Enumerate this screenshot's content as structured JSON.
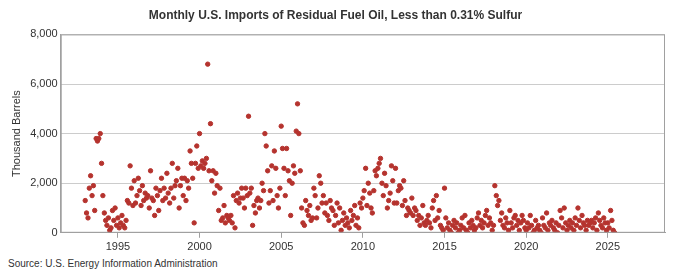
{
  "chart_data": {
    "type": "scatter",
    "title": "Monthly U.S. Imports of Residual Fuel Oil, Less than 0.31% Sulfur",
    "y_label": "Thousand Barrels",
    "source": "Source: U.S. Energy Information Administration",
    "color": "#b5332e",
    "marker": "circle",
    "grid": true,
    "xlim": [
      1991.5,
      2028.5
    ],
    "xticks": [
      1995,
      2000,
      2005,
      2010,
      2015,
      2020,
      2025
    ],
    "ylim": [
      0,
      8000
    ],
    "yticks": [
      0,
      {
        "value": 2000,
        "label": "2,000"
      },
      {
        "value": 4000,
        "label": "4,000"
      },
      {
        "value": 6000,
        "label": "6,000"
      },
      {
        "value": 8000,
        "label": "8,000"
      }
    ],
    "x": [
      1993,
      1993.08,
      1993.17,
      1993.25,
      1993.33,
      1993.42,
      1993.5,
      1993.58,
      1993.67,
      1993.75,
      1993.83,
      1993.92,
      1994,
      1994.08,
      1994.17,
      1994.25,
      1994.33,
      1994.42,
      1994.5,
      1994.58,
      1994.67,
      1994.75,
      1994.83,
      1994.92,
      1995,
      1995.08,
      1995.17,
      1995.25,
      1995.33,
      1995.42,
      1995.5,
      1995.58,
      1995.67,
      1995.75,
      1995.83,
      1995.92,
      1996,
      1996.08,
      1996.17,
      1996.25,
      1996.33,
      1996.42,
      1996.5,
      1996.58,
      1996.67,
      1996.75,
      1996.83,
      1996.92,
      1997,
      1997.08,
      1997.17,
      1997.25,
      1997.33,
      1997.42,
      1997.5,
      1997.58,
      1997.67,
      1997.75,
      1997.83,
      1997.92,
      1998,
      1998.08,
      1998.17,
      1998.25,
      1998.33,
      1998.42,
      1998.5,
      1998.58,
      1998.67,
      1998.75,
      1998.83,
      1998.92,
      1999,
      1999.08,
      1999.17,
      1999.25,
      1999.33,
      1999.42,
      1999.5,
      1999.58,
      1999.67,
      1999.75,
      1999.83,
      1999.92,
      2000,
      2000.08,
      2000.17,
      2000.25,
      2000.33,
      2000.42,
      2000.5,
      2000.58,
      2000.67,
      2000.75,
      2000.83,
      2000.92,
      2001,
      2001.08,
      2001.17,
      2001.25,
      2001.33,
      2001.42,
      2001.5,
      2001.58,
      2001.67,
      2001.75,
      2001.83,
      2001.92,
      2002,
      2002.08,
      2002.17,
      2002.25,
      2002.33,
      2002.42,
      2002.5,
      2002.58,
      2002.67,
      2002.75,
      2002.83,
      2002.92,
      2003,
      2003.08,
      2003.17,
      2003.25,
      2003.33,
      2003.42,
      2003.5,
      2003.58,
      2003.67,
      2003.75,
      2003.83,
      2003.92,
      2004,
      2004.08,
      2004.17,
      2004.25,
      2004.33,
      2004.42,
      2004.5,
      2004.58,
      2004.67,
      2004.75,
      2004.83,
      2004.92,
      2005,
      2005.08,
      2005.17,
      2005.25,
      2005.33,
      2005.42,
      2005.5,
      2005.58,
      2005.67,
      2005.75,
      2005.83,
      2005.92,
      2006,
      2006.08,
      2006.17,
      2006.25,
      2006.33,
      2006.42,
      2006.5,
      2006.58,
      2006.67,
      2006.75,
      2006.83,
      2006.92,
      2007,
      2007.08,
      2007.17,
      2007.25,
      2007.33,
      2007.42,
      2007.5,
      2007.58,
      2007.67,
      2007.75,
      2007.83,
      2007.92,
      2008,
      2008.08,
      2008.17,
      2008.25,
      2008.33,
      2008.42,
      2008.5,
      2008.58,
      2008.67,
      2008.75,
      2008.83,
      2008.92,
      2009,
      2009.08,
      2009.17,
      2009.25,
      2009.33,
      2009.42,
      2009.5,
      2009.58,
      2009.67,
      2009.75,
      2009.83,
      2009.92,
      2010,
      2010.08,
      2010.17,
      2010.25,
      2010.33,
      2010.42,
      2010.5,
      2010.58,
      2010.67,
      2010.75,
      2010.83,
      2010.92,
      2011,
      2011.08,
      2011.17,
      2011.25,
      2011.33,
      2011.42,
      2011.5,
      2011.58,
      2011.67,
      2011.75,
      2011.83,
      2011.92,
      2012,
      2012.08,
      2012.17,
      2012.25,
      2012.33,
      2012.42,
      2012.5,
      2012.58,
      2012.67,
      2012.75,
      2012.83,
      2012.92,
      2013,
      2013.08,
      2013.17,
      2013.25,
      2013.33,
      2013.42,
      2013.5,
      2013.58,
      2013.67,
      2013.75,
      2013.83,
      2013.92,
      2014,
      2014.08,
      2014.17,
      2014.25,
      2014.33,
      2014.42,
      2014.5,
      2014.58,
      2014.67,
      2014.75,
      2014.83,
      2014.92,
      2015,
      2015.08,
      2015.17,
      2015.25,
      2015.33,
      2015.42,
      2015.5,
      2015.58,
      2015.67,
      2015.75,
      2015.83,
      2015.92,
      2016,
      2016.08,
      2016.17,
      2016.25,
      2016.33,
      2016.42,
      2016.5,
      2016.58,
      2016.67,
      2016.75,
      2016.83,
      2016.92,
      2017,
      2017.08,
      2017.17,
      2017.25,
      2017.33,
      2017.42,
      2017.5,
      2017.58,
      2017.67,
      2017.75,
      2017.83,
      2017.92,
      2018,
      2018.08,
      2018.17,
      2018.25,
      2018.33,
      2018.42,
      2018.5,
      2018.58,
      2018.67,
      2018.75,
      2018.83,
      2018.92,
      2019,
      2019.08,
      2019.17,
      2019.25,
      2019.33,
      2019.42,
      2019.5,
      2019.58,
      2019.67,
      2019.75,
      2019.83,
      2019.92,
      2020,
      2020.08,
      2020.17,
      2020.25,
      2020.33,
      2020.42,
      2020.5,
      2020.58,
      2020.67,
      2020.75,
      2020.83,
      2020.92,
      2021,
      2021.08,
      2021.17,
      2021.25,
      2021.33,
      2021.42,
      2021.5,
      2021.58,
      2021.67,
      2021.75,
      2021.83,
      2021.92,
      2022,
      2022.08,
      2022.17,
      2022.25,
      2022.33,
      2022.42,
      2022.5,
      2022.58,
      2022.67,
      2022.75,
      2022.83,
      2022.92,
      2023,
      2023.08,
      2023.17,
      2023.25,
      2023.33,
      2023.42,
      2023.5,
      2023.58,
      2023.67,
      2023.75,
      2023.83,
      2023.92,
      2024,
      2024.08,
      2024.17,
      2024.25,
      2024.33,
      2024.42,
      2024.5,
      2024.58,
      2024.67,
      2024.75,
      2024.83,
      2024.92,
      2025,
      2025.08,
      2025.17,
      2025.25,
      2025.33,
      2025.42
    ],
    "values": [
      1300,
      800,
      600,
      1800,
      2300,
      1500,
      1900,
      900,
      3800,
      3700,
      3800,
      4000,
      2800,
      1500,
      800,
      500,
      300,
      600,
      100,
      200,
      900,
      500,
      1000,
      300,
      600,
      200,
      400,
      700,
      300,
      200,
      500,
      1300,
      1200,
      2700,
      1800,
      1100,
      2100,
      1200,
      1500,
      2200,
      1700,
      1100,
      1900,
      1300,
      1600,
      1400,
      1500,
      1000,
      2500,
      1400,
      1300,
      700,
      1800,
      1500,
      900,
      1700,
      2200,
      1300,
      1800,
      1400,
      2400,
      1600,
      1200,
      1800,
      2800,
      1400,
      1900,
      2100,
      2600,
      1000,
      1900,
      2200,
      1500,
      2200,
      1300,
      2100,
      1800,
      3300,
      2800,
      2200,
      400,
      2800,
      3500,
      2600,
      4000,
      2700,
      2900,
      2600,
      2800,
      3000,
      6800,
      2500,
      4400,
      2100,
      2500,
      1600,
      2400,
      1900,
      900,
      1800,
      500,
      600,
      1100,
      400,
      700,
      600,
      500,
      700,
      400,
      1500,
      200,
      1300,
      1600,
      1200,
      1400,
      1800,
      1400,
      1000,
      1800,
      1500,
      4700,
      1600,
      1800,
      300,
      1100,
      800,
      1300,
      1400,
      1000,
      1300,
      2000,
      1700,
      4000,
      3500,
      2500,
      1200,
      1700,
      2700,
      1300,
      3300,
      2600,
      1500,
      1000,
      1800,
      4300,
      3400,
      2600,
      1500,
      3400,
      2500,
      2100,
      700,
      2000,
      2700,
      2400,
      4100,
      5200,
      4000,
      2500,
      1000,
      400,
      300,
      1300,
      900,
      700,
      1100,
      500,
      600,
      1800,
      1500,
      600,
      1000,
      2300,
      2000,
      1200,
      1500,
      800,
      1200,
      700,
      500,
      1300,
      1000,
      900,
      300,
      700,
      1200,
      400,
      1000,
      100,
      500,
      800,
      300,
      600,
      400,
      200,
      900,
      500,
      700,
      1100,
      300,
      600,
      200,
      1200,
      1000,
      1400,
      1700,
      2600,
      1100,
      2000,
      1600,
      1000,
      800,
      1700,
      2500,
      2300,
      2600,
      2800,
      3000,
      2000,
      1500,
      2400,
      1900,
      1000,
      1300,
      1600,
      2700,
      2100,
      1200,
      2600,
      1200,
      1700,
      1900,
      1800,
      1100,
      2100,
      1300,
      700,
      1000,
      900,
      800,
      1400,
      700,
      1000,
      900,
      500,
      700,
      300,
      600,
      1100,
      400,
      300,
      500,
      700,
      400,
      200,
      1000,
      1300,
      500,
      1500,
      600,
      900,
      300,
      200,
      100,
      1800,
      600,
      200,
      400,
      100,
      0,
      300,
      500,
      200,
      400,
      0,
      100,
      300,
      600,
      200,
      700,
      100,
      0,
      400,
      200,
      500,
      300,
      100,
      200,
      600,
      800,
      300,
      500,
      200,
      400,
      700,
      900,
      300,
      600,
      400,
      100,
      300,
      1900,
      1500,
      1100,
      1300,
      500,
      800,
      300,
      200,
      600,
      400,
      100,
      900,
      400,
      200,
      600,
      700,
      300,
      500,
      100,
      400,
      700,
      500,
      200,
      100,
      400,
      200,
      700,
      300,
      0,
      100,
      500,
      200,
      300,
      100,
      0,
      600,
      300,
      200,
      800,
      100,
      400,
      300,
      500,
      200,
      100,
      400,
      0,
      300,
      900,
      600,
      200,
      1000,
      400,
      100,
      300,
      500,
      200,
      400,
      100,
      600,
      300,
      1000,
      500,
      200,
      700,
      400,
      300,
      100,
      500,
      300,
      400,
      500,
      200,
      400,
      600,
      100,
      800,
      500,
      300,
      200,
      600,
      400,
      100,
      400,
      200,
      900,
      500,
      100,
      0
    ]
  }
}
